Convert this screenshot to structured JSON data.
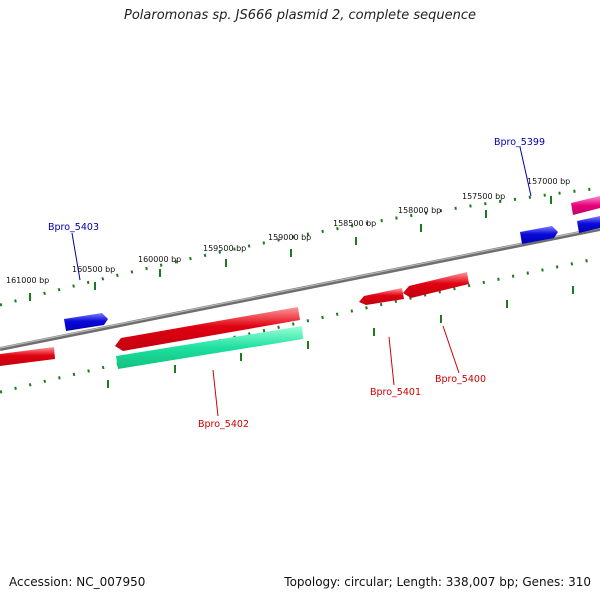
{
  "title": "Polaromonas sp. JS666 plasmid 2, complete sequence",
  "accession": "Accession: NC_007950",
  "summary": "Topology: circular; Length: 338,007 bp; Genes: 310",
  "colors": {
    "backbone": "#8a8a8a",
    "ticks": "#1e7a1e",
    "forward_cds": "#0a0adc",
    "reverse_cds": "#e00010",
    "rna": "#1ee0a0",
    "pink": "#e6007a",
    "label_forward": "#0000aa",
    "label_reverse": "#cc0000"
  },
  "scale": {
    "ticks_bp": [
      "161000 bp",
      "160500 bp",
      "160000 bp",
      "159500 bp",
      "159000 bp",
      "158500 bp",
      "158000 bp",
      "157500 bp",
      "157000 bp"
    ]
  },
  "genes": [
    {
      "label": "Bpro_5399",
      "strand": "forward"
    },
    {
      "label": "Bpro_5403",
      "strand": "forward"
    },
    {
      "label": "Bpro_5402",
      "strand": "reverse"
    },
    {
      "label": "Bpro_5401",
      "strand": "reverse"
    },
    {
      "label": "Bpro_5400",
      "strand": "reverse"
    }
  ]
}
